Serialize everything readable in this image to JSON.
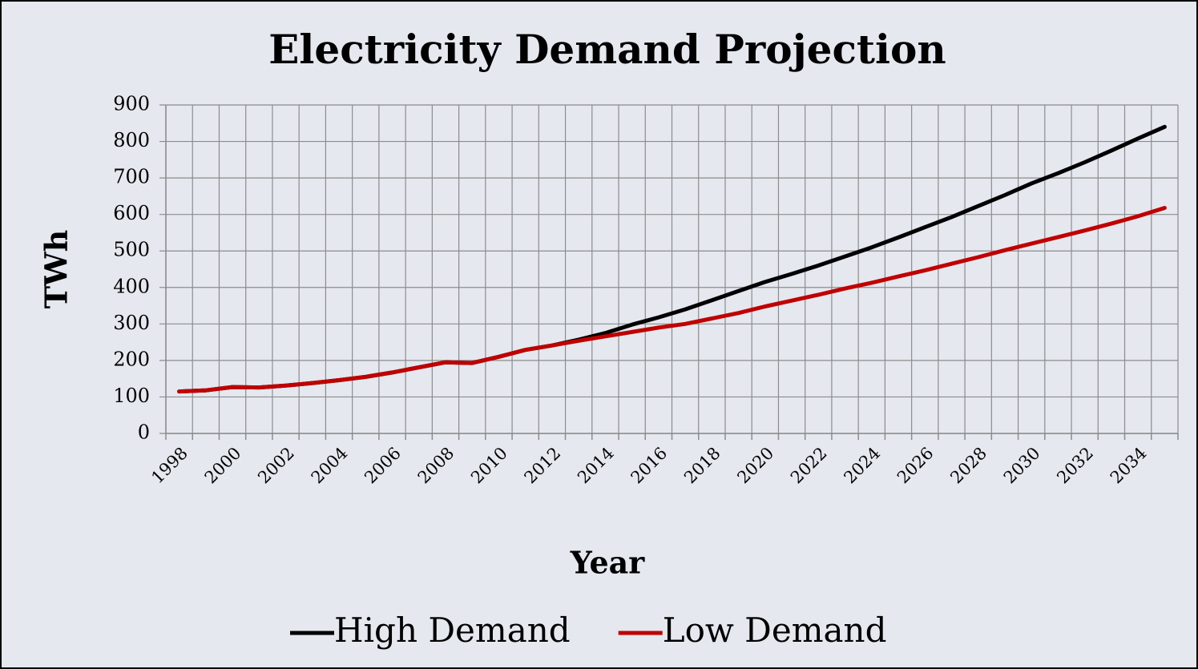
{
  "chart_data": {
    "type": "line",
    "title": "Electricity Demand Projection",
    "x_label": "Year",
    "y_label": "TWh",
    "categories": [
      "1998",
      null,
      "2000",
      null,
      "2002",
      null,
      "2004",
      null,
      "2006",
      null,
      "2008",
      null,
      "2010",
      null,
      "2012",
      null,
      "2014",
      null,
      "2016",
      null,
      "2018",
      null,
      "2020",
      null,
      "2022",
      null,
      "2024",
      null,
      "2026",
      null,
      "2028",
      null,
      "2030",
      null,
      "2032",
      null,
      "2034",
      null
    ],
    "series": [
      {
        "name": "High Demand",
        "color": "#000000",
        "values": [
          115,
          118,
          127,
          126,
          131,
          138,
          146,
          155,
          167,
          181,
          195,
          193,
          210,
          229,
          241,
          257,
          275,
          298,
          318,
          340,
          365,
          390,
          415,
          437,
          460,
          485,
          510,
          537,
          565,
          593,
          623,
          653,
          685,
          713,
          743,
          775,
          808,
          840
        ]
      },
      {
        "name": "Low Demand",
        "color": "#c00000",
        "values": [
          115,
          118,
          127,
          126,
          131,
          138,
          146,
          155,
          167,
          181,
          195,
          193,
          210,
          229,
          241,
          254,
          266,
          278,
          290,
          300,
          315,
          330,
          348,
          364,
          380,
          397,
          413,
          430,
          447,
          465,
          483,
          502,
          520,
          538,
          556,
          575,
          595,
          618
        ]
      }
    ],
    "ylim": [
      0,
      900
    ],
    "yticks": [
      0,
      100,
      200,
      300,
      400,
      500,
      600,
      700,
      800,
      900
    ],
    "grid": true,
    "legend": "bottom"
  }
}
